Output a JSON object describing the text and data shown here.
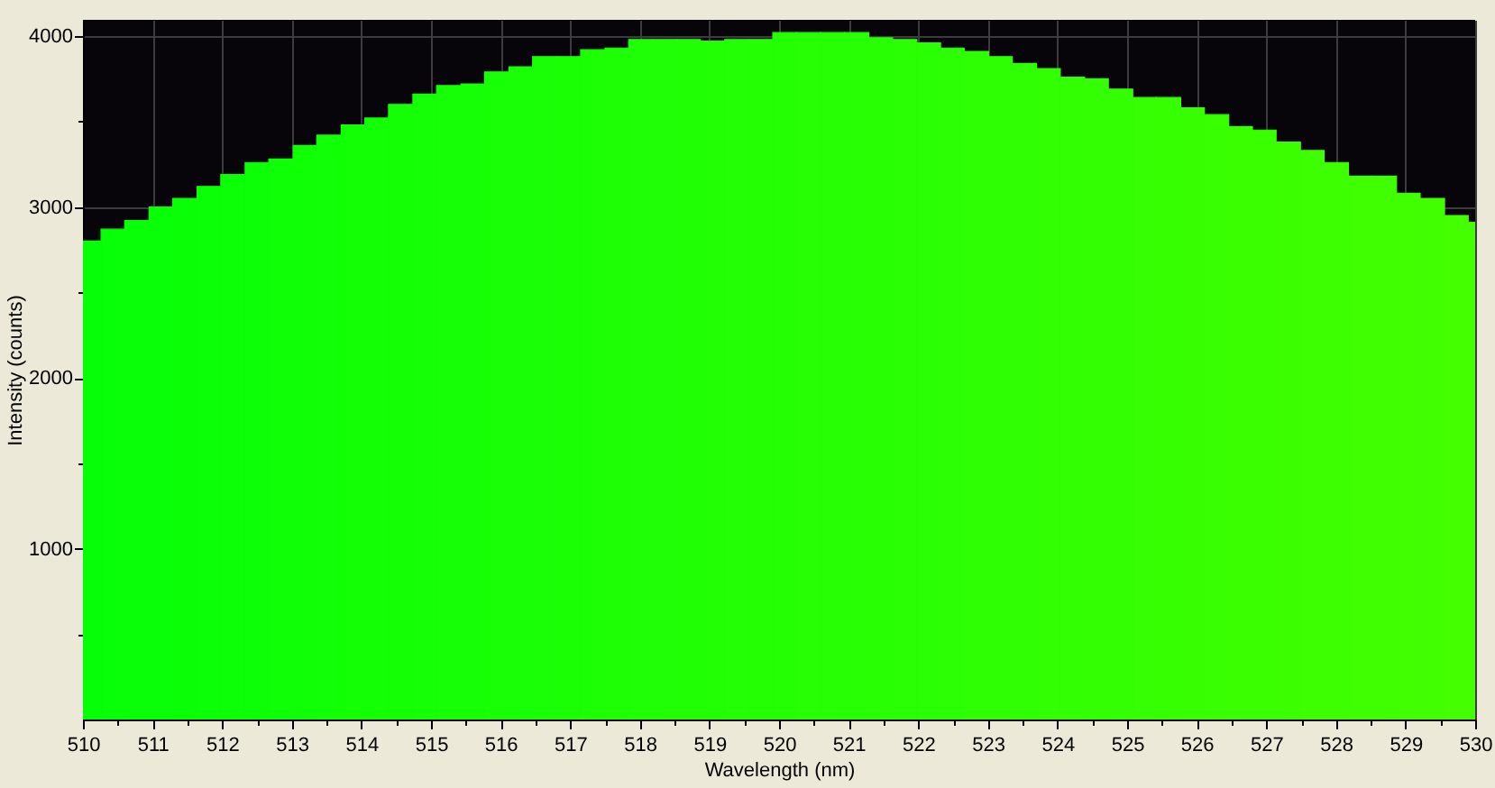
{
  "chart_data": {
    "type": "histogram",
    "xlabel": "Wavelength (nm)",
    "ylabel": "Intensity (counts)",
    "bins": [
      510,
      510.26,
      510.6,
      510.95,
      511.29,
      511.64,
      511.98,
      512.33,
      512.67,
      513.02,
      513.36,
      513.71,
      514.05,
      514.39,
      514.74,
      515.08,
      515.43,
      515.77,
      516.12,
      516.46,
      516.81,
      517.15,
      517.5,
      517.84,
      518.18,
      518.53,
      518.87,
      519.22,
      519.56,
      519.91,
      520.25,
      520.6,
      520.94,
      521.29,
      521.63,
      521.98,
      522.32,
      522.66,
      523.01,
      523.35,
      523.7,
      524.04,
      524.39,
      524.73,
      525.08,
      525.42,
      525.77,
      526.11,
      526.46,
      526.8,
      527.14,
      527.49,
      527.83,
      528.18,
      528.52,
      528.87,
      529.21,
      529.56,
      529.9,
      530
    ],
    "values": [
      2800,
      2870,
      2920,
      3000,
      3050,
      3120,
      3190,
      3260,
      3280,
      3360,
      3420,
      3480,
      3520,
      3600,
      3660,
      3710,
      3720,
      3790,
      3820,
      3880,
      3880,
      3920,
      3930,
      3980,
      3980,
      3980,
      3970,
      3980,
      3980,
      4020,
      4020,
      4020,
      4020,
      3990,
      3980,
      3960,
      3930,
      3910,
      3880,
      3840,
      3810,
      3760,
      3750,
      3690,
      3640,
      3640,
      3580,
      3540,
      3470,
      3450,
      3380,
      3330,
      3260,
      3180,
      3180,
      3080,
      3050,
      2950,
      2910
    ],
    "colors": [
      "#06ff08",
      "#07ff08",
      "#08ff08",
      "#09ff08",
      "#0aff07",
      "#0bff07",
      "#0cff07",
      "#0dff07",
      "#0fff07",
      "#10ff07",
      "#11ff07",
      "#12ff06",
      "#13ff06",
      "#14ff06",
      "#15ff06",
      "#16ff06",
      "#17ff06",
      "#18ff06",
      "#19ff06",
      "#1aff05",
      "#1bff05",
      "#1cff05",
      "#1eff05",
      "#1fff05",
      "#20ff05",
      "#21ff05",
      "#22ff04",
      "#23ff04",
      "#24ff04",
      "#25ff04",
      "#26ff04",
      "#27ff04",
      "#28ff04",
      "#29ff03",
      "#2aff03",
      "#2bff03",
      "#2cff03",
      "#2eff03",
      "#2fff03",
      "#30ff03",
      "#31ff02",
      "#32ff02",
      "#33ff02",
      "#34ff02",
      "#35ff02",
      "#36ff02",
      "#37ff02",
      "#38ff01",
      "#39ff01",
      "#3aff01",
      "#3bff01",
      "#3dff01",
      "#3eff01",
      "#3fff01",
      "#40ff01",
      "#41ff00",
      "#42ff00",
      "#43ff00",
      "#44ff00"
    ],
    "xlim": [
      510,
      530
    ],
    "ylim": [
      0,
      4095
    ],
    "xticks": [
      510,
      {
        "value": 510.5,
        "label": null
      },
      511,
      {
        "value": 511.5,
        "label": null
      },
      512,
      {
        "value": 512.5,
        "label": null
      },
      513,
      {
        "value": 513.5,
        "label": null
      },
      514,
      {
        "value": 514.5,
        "label": null
      },
      515,
      {
        "value": 515.5,
        "label": null
      },
      516,
      {
        "value": 516.5,
        "label": null
      },
      517,
      {
        "value": 517.5,
        "label": null
      },
      518,
      {
        "value": 518.5,
        "label": null
      },
      519,
      {
        "value": 519.5,
        "label": null
      },
      520,
      {
        "value": 520.5,
        "label": null
      },
      521,
      {
        "value": 521.5,
        "label": null
      },
      522,
      {
        "value": 522.5,
        "label": null
      },
      523,
      {
        "value": 523.5,
        "label": null
      },
      524,
      {
        "value": 524.5,
        "label": null
      },
      525,
      {
        "value": 525.5,
        "label": null
      },
      526,
      {
        "value": 526.5,
        "label": null
      },
      527,
      {
        "value": 527.5,
        "label": null
      },
      528,
      {
        "value": 528.5,
        "label": null
      },
      529,
      {
        "value": 529.5,
        "label": null
      },
      530
    ],
    "yticks": [
      {
        "value": 500,
        "label": null
      },
      1000,
      {
        "value": 1500,
        "label": null
      },
      2000,
      {
        "value": 2500,
        "label": null
      },
      3000,
      {
        "value": 3500,
        "label": null
      },
      4000
    ],
    "grid": true
  }
}
